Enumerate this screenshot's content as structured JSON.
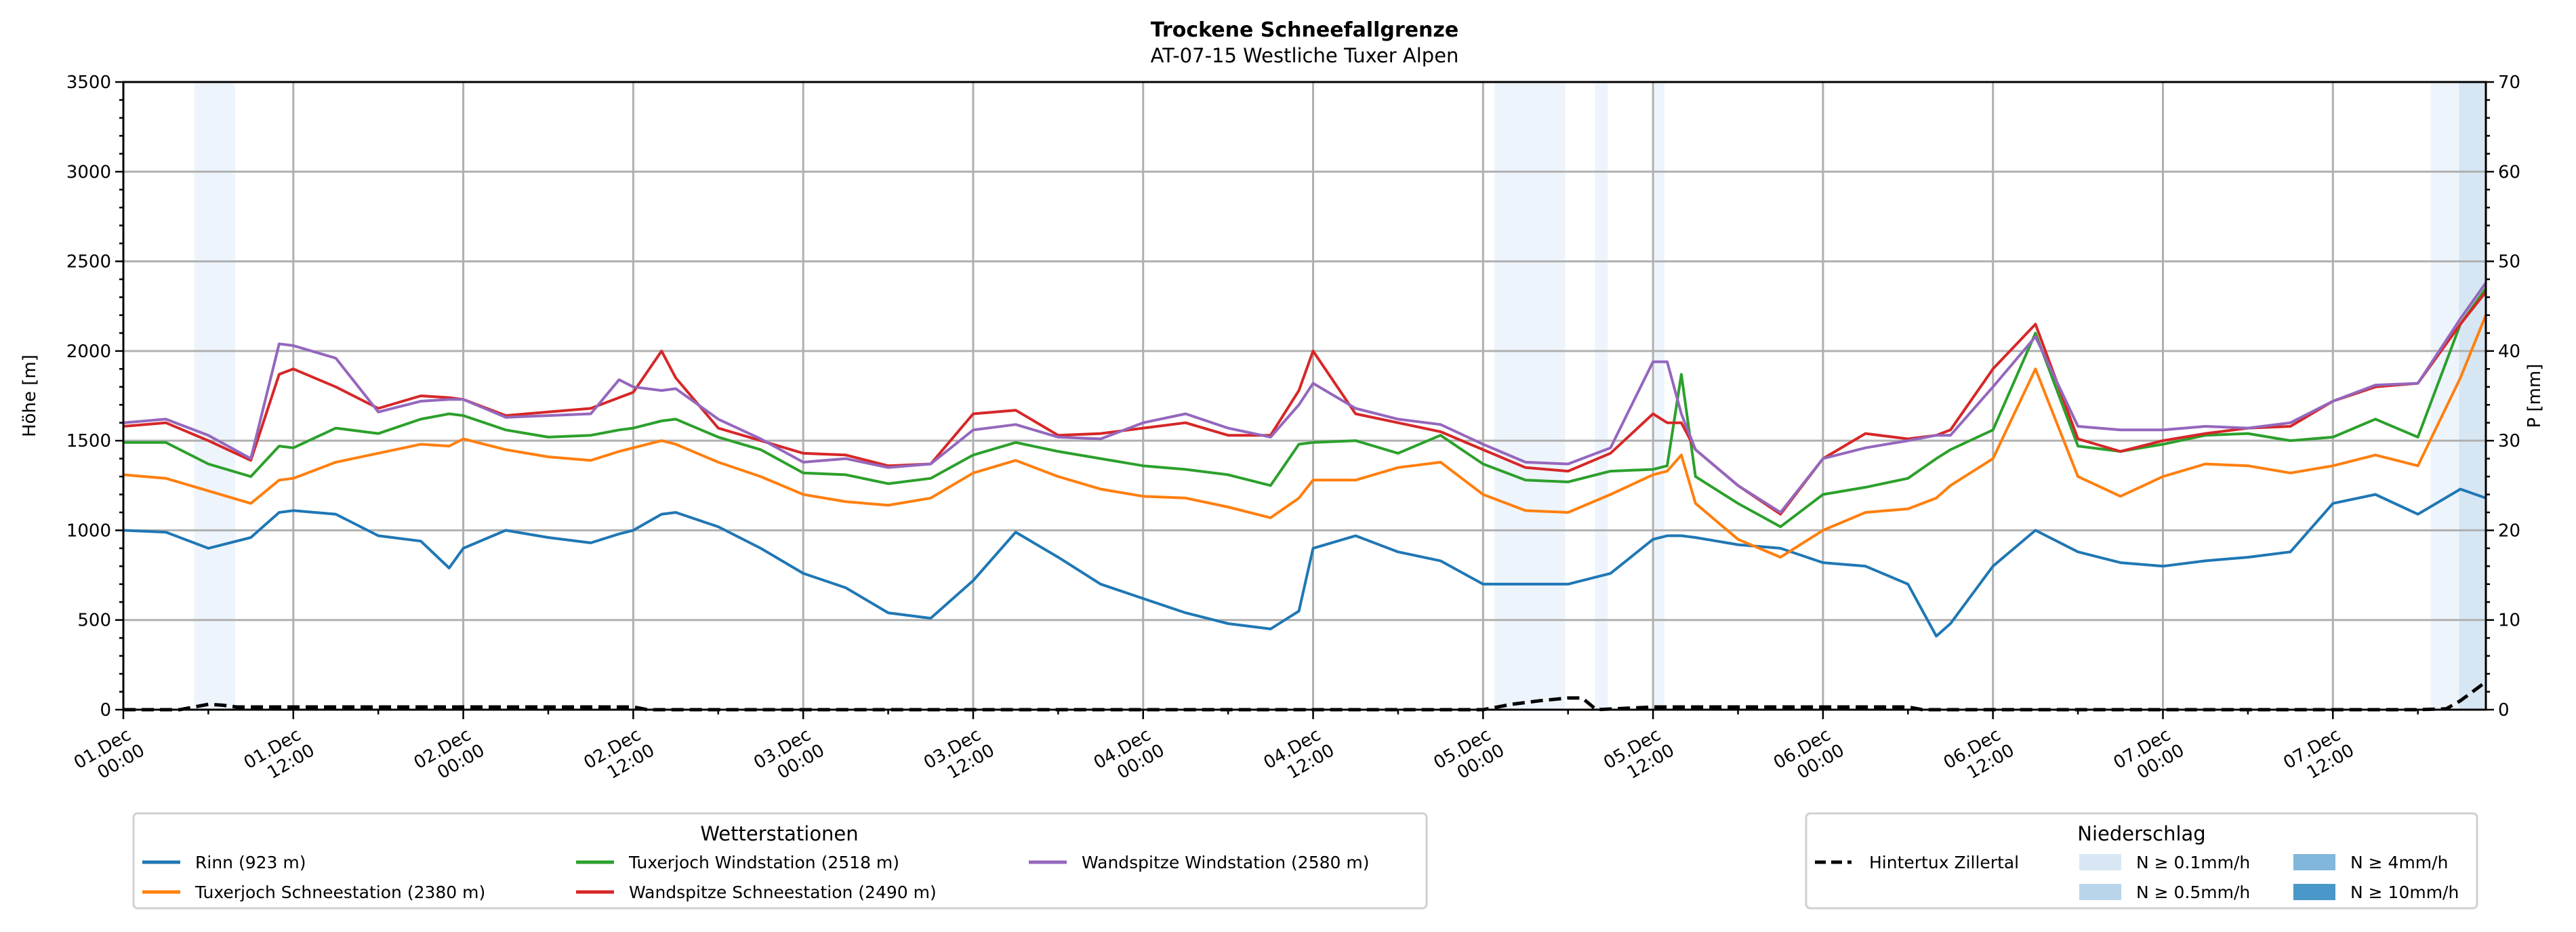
{
  "chart_data": {
    "type": "line",
    "title": "Trockene Schneefallgrenze",
    "subtitle": "AT-07-15 Westliche Tuxer Alpen",
    "ylabel": "Höhe [m]",
    "y2label": "P [mm]",
    "ylim": [
      0,
      3500
    ],
    "y2lim": [
      0,
      70
    ],
    "yticks": [
      "0",
      "500",
      "1000",
      "1500",
      "2000",
      "2500",
      "3000",
      "3500"
    ],
    "y2ticks": [
      "0",
      "10",
      "20",
      "30",
      "40",
      "50",
      "60",
      "70"
    ],
    "x_unit": "hours since 01.Dec 00:00",
    "xlim": [
      0,
      166.8
    ],
    "grid": true,
    "xtick_labels": [
      [
        "01.Dec",
        "00:00"
      ],
      [
        "01.Dec",
        "12:00"
      ],
      [
        "02.Dec",
        "00:00"
      ],
      [
        "02.Dec",
        "12:00"
      ],
      [
        "03.Dec",
        "00:00"
      ],
      [
        "03.Dec",
        "12:00"
      ],
      [
        "04.Dec",
        "00:00"
      ],
      [
        "04.Dec",
        "12:00"
      ],
      [
        "05.Dec",
        "00:00"
      ],
      [
        "05.Dec",
        "12:00"
      ],
      [
        "06.Dec",
        "00:00"
      ],
      [
        "06.Dec",
        "12:00"
      ],
      [
        "07.Dec",
        "00:00"
      ],
      [
        "07.Dec",
        "12:00"
      ]
    ],
    "x": [
      0,
      3,
      6,
      9,
      11,
      12,
      15,
      18,
      21,
      23,
      24,
      27,
      30,
      33,
      35,
      36,
      38,
      39,
      42,
      45,
      48,
      51,
      54,
      57,
      60,
      63,
      66,
      69,
      72,
      75,
      78,
      81,
      83,
      84,
      87,
      90,
      93,
      96,
      99,
      102,
      105,
      108,
      109,
      110,
      111,
      114,
      117,
      120,
      123,
      126,
      128,
      129,
      132,
      135,
      138,
      141,
      144,
      147,
      150,
      153,
      156,
      159,
      162,
      165,
      166.8
    ],
    "series": [
      {
        "name": "Rinn (923 m)",
        "color": "#1f77b4",
        "values": [
          1000,
          990,
          900,
          960,
          1100,
          1110,
          1090,
          970,
          940,
          790,
          900,
          1000,
          960,
          930,
          980,
          1000,
          1090,
          1100,
          1020,
          900,
          760,
          680,
          540,
          510,
          720,
          990,
          850,
          700,
          620,
          540,
          480,
          450,
          550,
          900,
          970,
          880,
          830,
          700,
          700,
          700,
          760,
          950,
          970,
          970,
          960,
          920,
          900,
          820,
          800,
          700,
          410,
          480,
          800,
          1000,
          880,
          820,
          800,
          830,
          850,
          880,
          1150,
          1200,
          1090,
          1230,
          1180
        ]
      },
      {
        "name": "Tuxerjoch Schneestation (2380 m)",
        "color": "#ff7f0e",
        "values": [
          1310,
          1290,
          1220,
          1150,
          1280,
          1290,
          1380,
          1430,
          1480,
          1470,
          1510,
          1450,
          1410,
          1390,
          1440,
          1460,
          1500,
          1480,
          1380,
          1300,
          1200,
          1160,
          1140,
          1180,
          1320,
          1390,
          1300,
          1230,
          1190,
          1180,
          1130,
          1070,
          1180,
          1280,
          1280,
          1350,
          1380,
          1200,
          1110,
          1100,
          1200,
          1310,
          1330,
          1420,
          1150,
          950,
          850,
          1000,
          1100,
          1120,
          1180,
          1250,
          1400,
          1900,
          1300,
          1190,
          1300,
          1370,
          1360,
          1320,
          1360,
          1420,
          1360,
          1850,
          2200
        ]
      },
      {
        "name": "Tuxerjoch Windstation (2518 m)",
        "color": "#2ca02c",
        "values": [
          1490,
          1490,
          1370,
          1300,
          1470,
          1460,
          1570,
          1540,
          1620,
          1650,
          1640,
          1560,
          1520,
          1530,
          1560,
          1570,
          1610,
          1620,
          1520,
          1450,
          1320,
          1310,
          1260,
          1290,
          1420,
          1490,
          1440,
          1400,
          1360,
          1340,
          1310,
          1250,
          1480,
          1490,
          1500,
          1430,
          1530,
          1370,
          1280,
          1270,
          1330,
          1340,
          1360,
          1870,
          1300,
          1150,
          1020,
          1200,
          1240,
          1290,
          1400,
          1450,
          1560,
          2100,
          1470,
          1440,
          1480,
          1530,
          1540,
          1500,
          1520,
          1620,
          1520,
          2150,
          2350
        ]
      },
      {
        "name": "Wandspitze Schneestation (2490 m)",
        "color": "#d62728",
        "values": [
          1580,
          1600,
          1500,
          1390,
          1870,
          1900,
          1800,
          1680,
          1750,
          1740,
          1730,
          1640,
          1660,
          1680,
          1740,
          1770,
          2000,
          1850,
          1570,
          1500,
          1430,
          1420,
          1360,
          1370,
          1650,
          1670,
          1530,
          1540,
          1570,
          1600,
          1530,
          1530,
          1780,
          2000,
          1650,
          1600,
          1550,
          1450,
          1350,
          1330,
          1430,
          1650,
          1600,
          1600,
          1450,
          1250,
          1090,
          1400,
          1540,
          1510,
          1530,
          1560,
          1900,
          2150,
          1510,
          1440,
          1500,
          1540,
          1570,
          1580,
          1720,
          1800,
          1820,
          2150,
          2330
        ]
      },
      {
        "name": "Wandspitze Windstation (2580 m)",
        "color": "#9467bd",
        "values": [
          1600,
          1620,
          1530,
          1400,
          2040,
          2030,
          1960,
          1660,
          1720,
          1730,
          1730,
          1630,
          1640,
          1650,
          1840,
          1800,
          1780,
          1790,
          1620,
          1510,
          1380,
          1400,
          1350,
          1370,
          1560,
          1590,
          1520,
          1510,
          1600,
          1650,
          1570,
          1520,
          1700,
          1820,
          1680,
          1620,
          1590,
          1480,
          1380,
          1370,
          1460,
          1940,
          1940,
          1650,
          1450,
          1250,
          1100,
          1400,
          1460,
          1500,
          1530,
          1530,
          1800,
          2080,
          1580,
          1560,
          1560,
          1580,
          1570,
          1600,
          1720,
          1810,
          1820,
          2180,
          2380
        ]
      }
    ],
    "precip_line": {
      "name": "Hintertux Zillertal",
      "color": "#000000",
      "x": [
        0,
        4,
        5,
        6,
        7,
        8,
        36,
        37,
        96,
        98,
        100,
        102,
        103,
        104,
        108,
        126,
        127,
        162,
        164,
        165,
        166.8
      ],
      "values": [
        0,
        0,
        0.3,
        0.6,
        0.5,
        0.3,
        0.3,
        0,
        0,
        0.6,
        1.0,
        1.3,
        1.3,
        0,
        0.3,
        0.3,
        0,
        0,
        0.1,
        1.0,
        3.1
      ]
    },
    "precip_bands": [
      {
        "start": 5,
        "end": 7.9,
        "level": "N ≥ 0.1mm/h"
      },
      {
        "start": 96.8,
        "end": 101.8,
        "level": "N ≥ 0.1mm/h"
      },
      {
        "start": 103.9,
        "end": 104.8,
        "level": "N ≥ 0.1mm/h"
      },
      {
        "start": 108,
        "end": 108.8,
        "level": "N ≥ 0.1mm/h"
      },
      {
        "start": 162.9,
        "end": 164.9,
        "level": "N ≥ 0.1mm/h"
      },
      {
        "start": 164.9,
        "end": 166.8,
        "level": "N ≥ 0.5mm/h"
      }
    ],
    "legend_stations": {
      "title": "Wetterstationen",
      "placement": "bottom-left"
    },
    "legend_precip": {
      "title": "Niederschlag",
      "placement": "bottom-right",
      "levels": [
        {
          "label": "N ≥ 0.1mm/h",
          "color": "#d9e7f5"
        },
        {
          "label": "N ≥ 0.5mm/h",
          "color": "#b8d5ea"
        },
        {
          "label": "N ≥ 4mm/h",
          "color": "#81b7da"
        },
        {
          "label": "N ≥ 10mm/h",
          "color": "#4a97c9"
        }
      ]
    },
    "band_colors": {
      "N ≥ 0.1mm/h": "#eef4fb",
      "N ≥ 0.5mm/h": "#d7e6f3"
    }
  }
}
